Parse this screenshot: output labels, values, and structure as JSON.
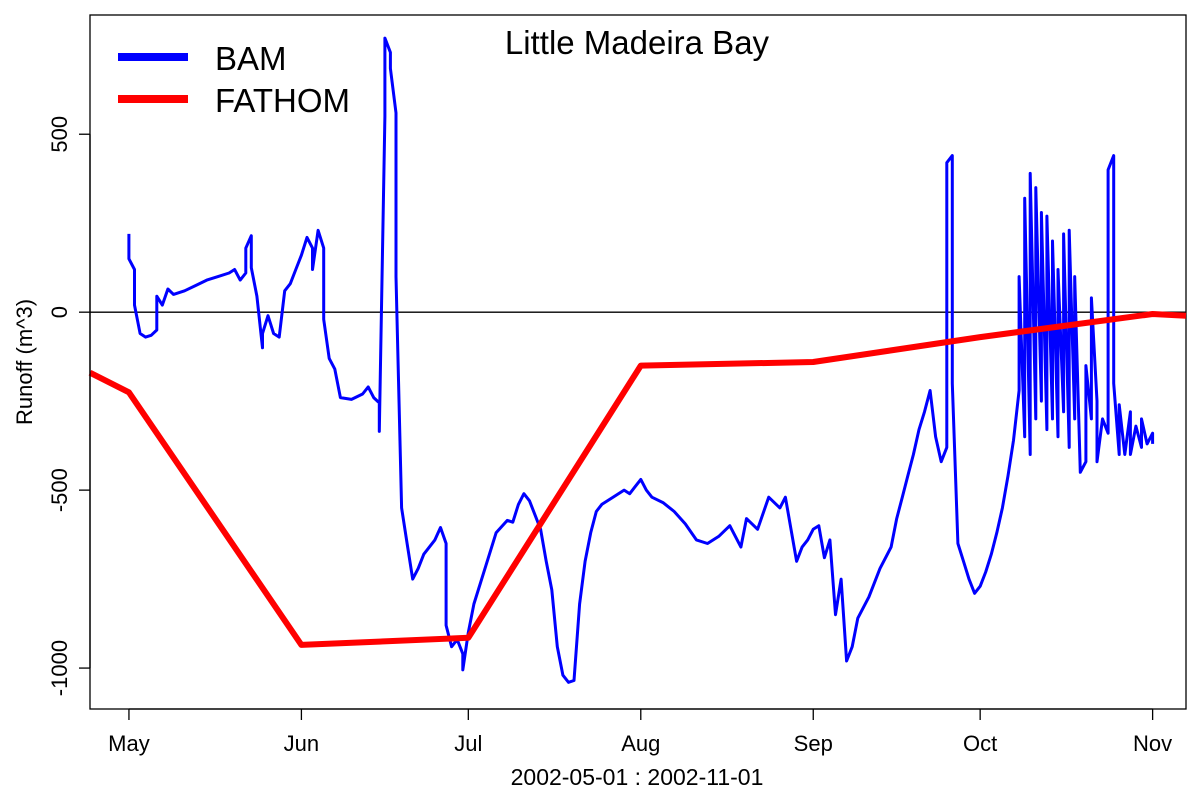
{
  "chart_data": {
    "type": "line",
    "title": "Little Madeira Bay",
    "xlabel": "2002-05-01 : 2002-11-01",
    "ylabel": "Runoff (m^3)",
    "x_range": [
      "2002-04-24",
      "2002-11-07"
    ],
    "ylim": [
      -1115,
      835
    ],
    "x_ticks": [
      {
        "label": "May",
        "date": "2002-05-01"
      },
      {
        "label": "Jun",
        "date": "2002-06-01"
      },
      {
        "label": "Jul",
        "date": "2002-07-01"
      },
      {
        "label": "Aug",
        "date": "2002-08-01"
      },
      {
        "label": "Sep",
        "date": "2002-09-01"
      },
      {
        "label": "Oct",
        "date": "2002-10-01"
      },
      {
        "label": "Nov",
        "date": "2002-11-01"
      }
    ],
    "y_ticks": [
      500,
      0,
      -500,
      -1000
    ],
    "reference_line": 0,
    "grid": false,
    "legend": "top-left",
    "series": [
      {
        "name": "BAM",
        "color": "#0000ff",
        "points": [
          [
            "2002-05-01",
            220
          ],
          [
            "2002-05-01",
            150
          ],
          [
            "2002-05-02",
            120
          ],
          [
            "2002-05-02",
            20
          ],
          [
            "2002-05-03",
            -60
          ],
          [
            "2002-05-04",
            -70
          ],
          [
            "2002-05-05",
            -65
          ],
          [
            "2002-05-06",
            -50
          ],
          [
            "2002-05-06",
            45
          ],
          [
            "2002-05-07",
            20
          ],
          [
            "2002-05-08",
            65
          ],
          [
            "2002-05-09",
            50
          ],
          [
            "2002-05-11",
            60
          ],
          [
            "2002-05-13",
            75
          ],
          [
            "2002-05-15",
            90
          ],
          [
            "2002-05-17",
            100
          ],
          [
            "2002-05-19",
            110
          ],
          [
            "2002-05-20",
            120
          ],
          [
            "2002-05-21",
            90
          ],
          [
            "2002-05-22",
            110
          ],
          [
            "2002-05-22",
            180
          ],
          [
            "2002-05-23",
            215
          ],
          [
            "2002-05-23",
            125
          ],
          [
            "2002-05-24",
            45
          ],
          [
            "2002-05-25",
            -100
          ],
          [
            "2002-05-25",
            -60
          ],
          [
            "2002-05-26",
            -10
          ],
          [
            "2002-05-27",
            -60
          ],
          [
            "2002-05-28",
            -70
          ],
          [
            "2002-05-29",
            60
          ],
          [
            "2002-05-30",
            80
          ],
          [
            "2002-05-31",
            120
          ],
          [
            "2002-06-01",
            160
          ],
          [
            "2002-06-02",
            210
          ],
          [
            "2002-06-03",
            180
          ],
          [
            "2002-06-03",
            120
          ],
          [
            "2002-06-04",
            230
          ],
          [
            "2002-06-05",
            180
          ],
          [
            "2002-06-05",
            -20
          ],
          [
            "2002-06-06",
            -130
          ],
          [
            "2002-06-07",
            -160
          ],
          [
            "2002-06-08",
            -240
          ],
          [
            "2002-06-10",
            -245
          ],
          [
            "2002-06-12",
            -230
          ],
          [
            "2002-06-13",
            -210
          ],
          [
            "2002-06-14",
            -240
          ],
          [
            "2002-06-15",
            -255
          ],
          [
            "2002-06-15",
            -335
          ],
          [
            "2002-06-16",
            550
          ],
          [
            "2002-06-16",
            770
          ],
          [
            "2002-06-17",
            730
          ],
          [
            "2002-06-17",
            685
          ],
          [
            "2002-06-18",
            560
          ],
          [
            "2002-06-18",
            100
          ],
          [
            "2002-06-19",
            -550
          ],
          [
            "2002-06-20",
            -650
          ],
          [
            "2002-06-21",
            -750
          ],
          [
            "2002-06-22",
            -720
          ],
          [
            "2002-06-23",
            -680
          ],
          [
            "2002-06-25",
            -640
          ],
          [
            "2002-06-26",
            -605
          ],
          [
            "2002-06-27",
            -650
          ],
          [
            "2002-06-27",
            -880
          ],
          [
            "2002-06-28",
            -940
          ],
          [
            "2002-06-29",
            -920
          ],
          [
            "2002-06-30",
            -960
          ],
          [
            "2002-06-30",
            -1005
          ],
          [
            "2002-07-01",
            -900
          ],
          [
            "2002-07-02",
            -820
          ],
          [
            "2002-07-04",
            -720
          ],
          [
            "2002-07-06",
            -620
          ],
          [
            "2002-07-08",
            -585
          ],
          [
            "2002-07-09",
            -590
          ],
          [
            "2002-07-10",
            -540
          ],
          [
            "2002-07-11",
            -510
          ],
          [
            "2002-07-12",
            -530
          ],
          [
            "2002-07-14",
            -610
          ],
          [
            "2002-07-15",
            -700
          ],
          [
            "2002-07-16",
            -780
          ],
          [
            "2002-07-17",
            -940
          ],
          [
            "2002-07-18",
            -1020
          ],
          [
            "2002-07-19",
            -1040
          ],
          [
            "2002-07-20",
            -1035
          ],
          [
            "2002-07-21",
            -820
          ],
          [
            "2002-07-22",
            -700
          ],
          [
            "2002-07-23",
            -620
          ],
          [
            "2002-07-24",
            -560
          ],
          [
            "2002-07-25",
            -540
          ],
          [
            "2002-07-27",
            -520
          ],
          [
            "2002-07-29",
            -500
          ],
          [
            "2002-07-30",
            -510
          ],
          [
            "2002-07-31",
            -490
          ],
          [
            "2002-08-01",
            -470
          ],
          [
            "2002-08-02",
            -500
          ],
          [
            "2002-08-03",
            -520
          ],
          [
            "2002-08-05",
            -535
          ],
          [
            "2002-08-07",
            -560
          ],
          [
            "2002-08-09",
            -595
          ],
          [
            "2002-08-11",
            -640
          ],
          [
            "2002-08-13",
            -650
          ],
          [
            "2002-08-15",
            -630
          ],
          [
            "2002-08-17",
            -600
          ],
          [
            "2002-08-19",
            -660
          ],
          [
            "2002-08-20",
            -580
          ],
          [
            "2002-08-22",
            -610
          ],
          [
            "2002-08-24",
            -520
          ],
          [
            "2002-08-26",
            -550
          ],
          [
            "2002-08-27",
            -520
          ],
          [
            "2002-08-28",
            -610
          ],
          [
            "2002-08-29",
            -700
          ],
          [
            "2002-08-30",
            -660
          ],
          [
            "2002-08-31",
            -640
          ],
          [
            "2002-09-01",
            -610
          ],
          [
            "2002-09-02",
            -600
          ],
          [
            "2002-09-03",
            -690
          ],
          [
            "2002-09-04",
            -640
          ],
          [
            "2002-09-05",
            -850
          ],
          [
            "2002-09-06",
            -750
          ],
          [
            "2002-09-07",
            -980
          ],
          [
            "2002-09-08",
            -940
          ],
          [
            "2002-09-09",
            -860
          ],
          [
            "2002-09-11",
            -800
          ],
          [
            "2002-09-13",
            -720
          ],
          [
            "2002-09-15",
            -660
          ],
          [
            "2002-09-16",
            -580
          ],
          [
            "2002-09-17",
            -520
          ],
          [
            "2002-09-18",
            -460
          ],
          [
            "2002-09-19",
            -400
          ],
          [
            "2002-09-20",
            -330
          ],
          [
            "2002-09-21",
            -280
          ],
          [
            "2002-09-22",
            -220
          ],
          [
            "2002-09-23",
            -350
          ],
          [
            "2002-09-24",
            -420
          ],
          [
            "2002-09-25",
            -380
          ],
          [
            "2002-09-25",
            420
          ],
          [
            "2002-09-26",
            440
          ],
          [
            "2002-09-26",
            -200
          ],
          [
            "2002-09-27",
            -650
          ],
          [
            "2002-09-28",
            -700
          ],
          [
            "2002-09-29",
            -750
          ],
          [
            "2002-09-30",
            -790
          ],
          [
            "2002-10-01",
            -770
          ],
          [
            "2002-10-02",
            -730
          ],
          [
            "2002-10-03",
            -680
          ],
          [
            "2002-10-04",
            -620
          ],
          [
            "2002-10-05",
            -550
          ],
          [
            "2002-10-06",
            -460
          ],
          [
            "2002-10-07",
            -360
          ],
          [
            "2002-10-08",
            -220
          ],
          [
            "2002-10-08",
            100
          ],
          [
            "2002-10-09",
            -350
          ],
          [
            "2002-10-09",
            320
          ],
          [
            "2002-10-10",
            -400
          ],
          [
            "2002-10-10",
            390
          ],
          [
            "2002-10-11",
            -300
          ],
          [
            "2002-10-11",
            350
          ],
          [
            "2002-10-12",
            -250
          ],
          [
            "2002-10-12",
            280
          ],
          [
            "2002-10-13",
            -330
          ],
          [
            "2002-10-13",
            270
          ],
          [
            "2002-10-14",
            -300
          ],
          [
            "2002-10-14",
            200
          ],
          [
            "2002-10-15",
            -350
          ],
          [
            "2002-10-15",
            120
          ],
          [
            "2002-10-16",
            -280
          ],
          [
            "2002-10-16",
            220
          ],
          [
            "2002-10-17",
            -380
          ],
          [
            "2002-10-17",
            230
          ],
          [
            "2002-10-18",
            -300
          ],
          [
            "2002-10-18",
            100
          ],
          [
            "2002-10-19",
            -450
          ],
          [
            "2002-10-20",
            -420
          ],
          [
            "2002-10-20",
            -150
          ],
          [
            "2002-10-21",
            -300
          ],
          [
            "2002-10-21",
            40
          ],
          [
            "2002-10-22",
            -250
          ],
          [
            "2002-10-22",
            -420
          ],
          [
            "2002-10-23",
            -300
          ],
          [
            "2002-10-24",
            -340
          ],
          [
            "2002-10-24",
            400
          ],
          [
            "2002-10-25",
            440
          ],
          [
            "2002-10-25",
            -200
          ],
          [
            "2002-10-26",
            -400
          ],
          [
            "2002-10-26",
            -260
          ],
          [
            "2002-10-27",
            -400
          ],
          [
            "2002-10-28",
            -280
          ],
          [
            "2002-10-28",
            -400
          ],
          [
            "2002-10-29",
            -320
          ],
          [
            "2002-10-30",
            -380
          ],
          [
            "2002-10-30",
            -300
          ],
          [
            "2002-10-31",
            -370
          ],
          [
            "2002-11-01",
            -340
          ],
          [
            "2002-11-01",
            -370
          ]
        ]
      },
      {
        "name": "FATHOM",
        "color": "#ff0000",
        "points": [
          [
            "2002-04-24",
            -170
          ],
          [
            "2002-05-01",
            -225
          ],
          [
            "2002-06-01",
            -935
          ],
          [
            "2002-07-01",
            -915
          ],
          [
            "2002-08-01",
            -150
          ],
          [
            "2002-09-01",
            -140
          ],
          [
            "2002-10-01",
            -70
          ],
          [
            "2002-11-01",
            -5
          ],
          [
            "2002-11-07",
            -10
          ]
        ]
      }
    ]
  }
}
